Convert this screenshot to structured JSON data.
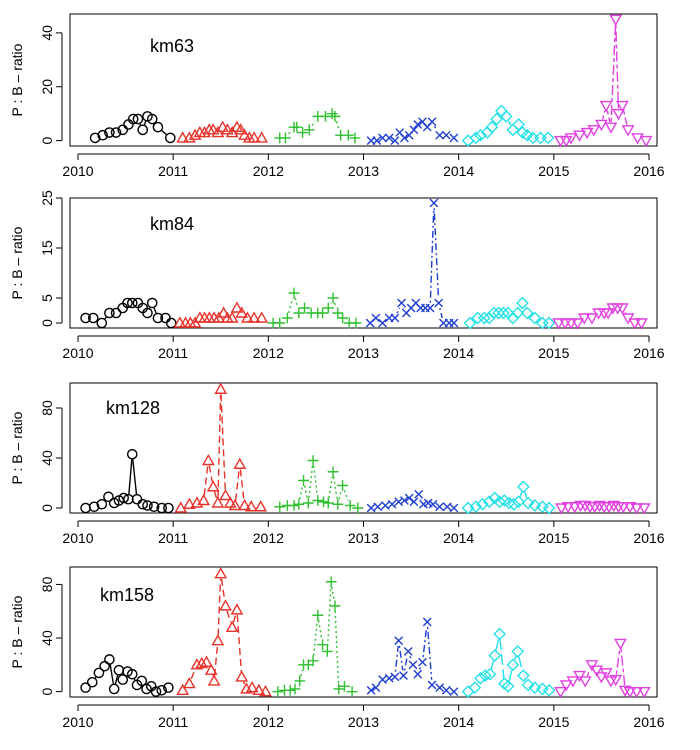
{
  "chart_data": {
    "type": "line",
    "ylabel": "P : B – ratio",
    "x_ticks": [
      "2010",
      "2011",
      "2012",
      "2013",
      "2014",
      "2015",
      "2016"
    ],
    "xlim": [
      2010,
      2016
    ],
    "year_styles": [
      {
        "year": 2010,
        "color": "#000000",
        "marker": "circle",
        "dash": "solid"
      },
      {
        "year": 2011,
        "color": "#e8322a",
        "marker": "triangle",
        "dash": "dashed"
      },
      {
        "year": 2012,
        "color": "#2fbf2f",
        "marker": "plus",
        "dash": "dotted"
      },
      {
        "year": 2013,
        "color": "#1f3fcf",
        "marker": "cross",
        "dash": "dotdash"
      },
      {
        "year": 2014,
        "color": "#26e0e8",
        "marker": "diamond",
        "dash": "longdash"
      },
      {
        "year": 2015,
        "color": "#e040e0",
        "marker": "triangle-down",
        "dash": "twodash"
      }
    ],
    "panels": [
      {
        "title": "km63",
        "ylim": [
          -2,
          47
        ],
        "y_ticks": [
          0,
          20,
          40
        ],
        "series": [
          {
            "year": 2010,
            "x": [
              2010.18,
              2010.26,
              2010.33,
              2010.4,
              2010.47,
              2010.53,
              2010.58,
              2010.63,
              2010.68,
              2010.73,
              2010.78,
              2010.84,
              2010.97
            ],
            "y": [
              1,
              2,
              3,
              3,
              4,
              6,
              8,
              8,
              4,
              9,
              8,
              5,
              1
            ]
          },
          {
            "year": 2011,
            "x": [
              2011.1,
              2011.17,
              2011.23,
              2011.28,
              2011.33,
              2011.38,
              2011.42,
              2011.47,
              2011.52,
              2011.57,
              2011.62,
              2011.67,
              2011.71,
              2011.75,
              2011.8,
              2011.85,
              2011.93
            ],
            "y": [
              1,
              1,
              2,
              3,
              3,
              4,
              4,
              3,
              5,
              4,
              3,
              5,
              4,
              2,
              1,
              1,
              1
            ]
          },
          {
            "year": 2012,
            "x": [
              2012.12,
              2012.18,
              2012.27,
              2012.3,
              2012.36,
              2012.43,
              2012.52,
              2012.6,
              2012.67,
              2012.7,
              2012.76,
              2012.84,
              2012.91
            ],
            "y": [
              1,
              1,
              5,
              5,
              3,
              4,
              9,
              9,
              10,
              9,
              2,
              2,
              1
            ]
          },
          {
            "year": 2013,
            "x": [
              2013.08,
              2013.14,
              2013.2,
              2013.27,
              2013.33,
              2013.38,
              2013.43,
              2013.48,
              2013.53,
              2013.57,
              2013.62,
              2013.67,
              2013.72,
              2013.8,
              2013.87,
              2013.95
            ],
            "y": [
              0,
              0,
              1,
              1,
              0,
              3,
              1,
              2,
              4,
              6,
              7,
              5,
              7,
              2,
              2,
              1
            ]
          },
          {
            "year": 2014,
            "x": [
              2014.1,
              2014.18,
              2014.23,
              2014.3,
              2014.35,
              2014.4,
              2014.45,
              2014.5,
              2014.57,
              2014.63,
              2014.67,
              2014.72,
              2014.78,
              2014.86,
              2014.94
            ],
            "y": [
              0,
              1,
              2,
              3,
              5,
              8,
              11,
              9,
              4,
              6,
              3,
              2,
              1,
              1,
              1
            ]
          },
          {
            "year": 2015,
            "x": [
              2015.07,
              2015.13,
              2015.18,
              2015.27,
              2015.35,
              2015.42,
              2015.5,
              2015.55,
              2015.6,
              2015.65,
              2015.68,
              2015.72,
              2015.78,
              2015.88,
              2015.97
            ],
            "y": [
              0,
              0,
              1,
              2,
              3,
              4,
              6,
              13,
              5,
              45,
              10,
              13,
              4,
              1,
              0
            ]
          }
        ]
      },
      {
        "title": "km84",
        "ylim": [
          -1,
          25
        ],
        "y_ticks": [
          0,
          5,
          15,
          25
        ],
        "series": [
          {
            "year": 2010,
            "x": [
              2010.08,
              2010.16,
              2010.25,
              2010.33,
              2010.4,
              2010.47,
              2010.52,
              2010.57,
              2010.63,
              2010.68,
              2010.73,
              2010.78,
              2010.84,
              2010.92,
              2010.98
            ],
            "y": [
              1,
              1,
              0,
              2,
              2,
              3,
              4,
              4,
              4,
              3,
              2,
              4,
              1,
              1,
              0
            ]
          },
          {
            "year": 2011,
            "x": [
              2011.07,
              2011.13,
              2011.18,
              2011.23,
              2011.28,
              2011.33,
              2011.38,
              2011.43,
              2011.48,
              2011.53,
              2011.57,
              2011.62,
              2011.67,
              2011.72,
              2011.78,
              2011.85,
              2011.93
            ],
            "y": [
              0,
              0,
              0,
              0,
              1,
              1,
              1,
              1,
              1,
              2,
              1,
              1,
              3,
              2,
              1,
              1,
              1
            ]
          },
          {
            "year": 2012,
            "x": [
              2012.05,
              2012.12,
              2012.2,
              2012.27,
              2012.32,
              2012.38,
              2012.45,
              2012.52,
              2012.57,
              2012.63,
              2012.68,
              2012.73,
              2012.78,
              2012.85,
              2012.92
            ],
            "y": [
              0,
              0,
              1,
              6,
              2,
              3,
              2,
              2,
              2,
              3,
              5,
              2,
              1,
              0,
              0
            ]
          },
          {
            "year": 2013,
            "x": [
              2013.07,
              2013.13,
              2013.2,
              2013.27,
              2013.33,
              2013.4,
              2013.45,
              2013.5,
              2013.55,
              2013.6,
              2013.65,
              2013.7,
              2013.74,
              2013.79,
              2013.84,
              2013.9,
              2013.95
            ],
            "y": [
              0,
              1,
              0,
              1,
              1,
              4,
              2,
              3,
              4,
              3,
              3,
              3,
              24,
              4,
              0,
              0,
              0
            ]
          },
          {
            "year": 2014,
            "x": [
              2014.12,
              2014.2,
              2014.27,
              2014.32,
              2014.37,
              2014.42,
              2014.47,
              2014.52,
              2014.57,
              2014.62,
              2014.67,
              2014.72,
              2014.8,
              2014.88,
              2014.95
            ],
            "y": [
              0,
              1,
              1,
              1,
              2,
              2,
              2,
              2,
              1,
              2,
              4,
              2,
              1,
              0,
              0
            ]
          },
          {
            "year": 2015,
            "x": [
              2015.05,
              2015.12,
              2015.18,
              2015.25,
              2015.32,
              2015.4,
              2015.47,
              2015.53,
              2015.57,
              2015.62,
              2015.67,
              2015.72,
              2015.78,
              2015.85,
              2015.92
            ],
            "y": [
              0,
              0,
              0,
              0,
              1,
              1,
              2,
              2,
              2,
              3,
              3,
              3,
              1,
              0,
              0
            ]
          }
        ]
      },
      {
        "title": "km128",
        "ylim": [
          -4,
          100
        ],
        "y_ticks": [
          0,
          40,
          80
        ],
        "series": [
          {
            "year": 2010,
            "x": [
              2010.08,
              2010.17,
              2010.25,
              2010.32,
              2010.38,
              2010.43,
              2010.48,
              2010.53,
              2010.57,
              2010.62,
              2010.68,
              2010.73,
              2010.8,
              2010.88,
              2010.95
            ],
            "y": [
              0,
              1,
              3,
              9,
              4,
              6,
              8,
              7,
              43,
              7,
              3,
              2,
              1,
              0,
              0
            ]
          },
          {
            "year": 2011,
            "x": [
              2011.08,
              2011.17,
              2011.25,
              2011.32,
              2011.37,
              2011.42,
              2011.47,
              2011.5,
              2011.55,
              2011.6,
              2011.65,
              2011.7,
              2011.75,
              2011.82,
              2011.92
            ],
            "y": [
              0,
              3,
              4,
              6,
              38,
              17,
              4,
              95,
              10,
              4,
              2,
              35,
              2,
              1,
              1
            ]
          },
          {
            "year": 2012,
            "x": [
              2012.12,
              2012.2,
              2012.27,
              2012.32,
              2012.37,
              2012.42,
              2012.47,
              2012.52,
              2012.58,
              2012.63,
              2012.68,
              2012.73,
              2012.78,
              2012.86,
              2012.94
            ],
            "y": [
              1,
              2,
              2,
              3,
              22,
              4,
              38,
              6,
              5,
              4,
              29,
              3,
              18,
              2,
              0
            ]
          },
          {
            "year": 2013,
            "x": [
              2013.08,
              2013.15,
              2013.23,
              2013.3,
              2013.37,
              2013.43,
              2013.48,
              2013.53,
              2013.58,
              2013.63,
              2013.68,
              2013.73,
              2013.8,
              2013.88,
              2013.95
            ],
            "y": [
              0,
              1,
              2,
              3,
              5,
              6,
              8,
              5,
              11,
              3,
              4,
              3,
              1,
              1,
              0
            ]
          },
          {
            "year": 2014,
            "x": [
              2014.1,
              2014.18,
              2014.25,
              2014.32,
              2014.38,
              2014.43,
              2014.48,
              2014.53,
              2014.58,
              2014.63,
              2014.68,
              2014.73,
              2014.8,
              2014.88,
              2014.95
            ],
            "y": [
              0,
              1,
              3,
              5,
              8,
              5,
              6,
              4,
              3,
              5,
              17,
              4,
              2,
              1,
              0
            ]
          },
          {
            "year": 2015,
            "x": [
              2015.08,
              2015.15,
              2015.22,
              2015.28,
              2015.33,
              2015.38,
              2015.43,
              2015.48,
              2015.53,
              2015.58,
              2015.63,
              2015.68,
              2015.73,
              2015.8,
              2015.87,
              2015.95
            ],
            "y": [
              0,
              1,
              1,
              2,
              2,
              1,
              1,
              2,
              1,
              1,
              2,
              1,
              1,
              1,
              0,
              0
            ]
          }
        ]
      },
      {
        "title": "km158",
        "ylim": [
          -4,
          93
        ],
        "y_ticks": [
          0,
          40,
          80
        ],
        "series": [
          {
            "year": 2010,
            "x": [
              2010.08,
              2010.15,
              2010.22,
              2010.28,
              2010.33,
              2010.38,
              2010.43,
              2010.47,
              2010.52,
              2010.57,
              2010.62,
              2010.67,
              2010.72,
              2010.77,
              2010.82,
              2010.88,
              2010.95
            ],
            "y": [
              3,
              7,
              14,
              19,
              24,
              2,
              16,
              9,
              15,
              13,
              5,
              8,
              2,
              4,
              0,
              1,
              3
            ]
          },
          {
            "year": 2011,
            "x": [
              2011.1,
              2011.17,
              2011.25,
              2011.3,
              2011.35,
              2011.4,
              2011.43,
              2011.47,
              2011.5,
              2011.55,
              2011.62,
              2011.67,
              2011.72,
              2011.77,
              2011.83,
              2011.9,
              2011.97
            ],
            "y": [
              1,
              6,
              20,
              21,
              22,
              16,
              8,
              38,
              88,
              64,
              48,
              61,
              11,
              2,
              3,
              1,
              0
            ]
          },
          {
            "year": 2012,
            "x": [
              2012.1,
              2012.17,
              2012.23,
              2012.28,
              2012.33,
              2012.37,
              2012.42,
              2012.47,
              2012.52,
              2012.57,
              2012.62,
              2012.66,
              2012.7,
              2012.74,
              2012.8,
              2012.88
            ],
            "y": [
              0,
              1,
              1,
              2,
              8,
              20,
              20,
              23,
              57,
              35,
              30,
              82,
              64,
              2,
              4,
              0
            ]
          },
          {
            "year": 2013,
            "x": [
              2013.08,
              2013.13,
              2013.2,
              2013.27,
              2013.33,
              2013.37,
              2013.42,
              2013.47,
              2013.52,
              2013.57,
              2013.62,
              2013.67,
              2013.72,
              2013.8,
              2013.87,
              2013.95
            ],
            "y": [
              1,
              3,
              9,
              10,
              11,
              38,
              12,
              30,
              20,
              13,
              22,
              52,
              5,
              3,
              1,
              0
            ]
          },
          {
            "year": 2014,
            "x": [
              2014.1,
              2014.17,
              2014.23,
              2014.28,
              2014.33,
              2014.38,
              2014.43,
              2014.48,
              2014.52,
              2014.57,
              2014.62,
              2014.68,
              2014.73,
              2014.8,
              2014.88,
              2014.95
            ],
            "y": [
              0,
              3,
              10,
              12,
              13,
              27,
              43,
              6,
              4,
              20,
              30,
              12,
              5,
              3,
              2,
              1
            ]
          },
          {
            "year": 2015,
            "x": [
              2015.07,
              2015.13,
              2015.2,
              2015.27,
              2015.33,
              2015.4,
              2015.45,
              2015.5,
              2015.55,
              2015.6,
              2015.65,
              2015.7,
              2015.75,
              2015.8,
              2015.87,
              2015.95
            ],
            "y": [
              0,
              5,
              8,
              12,
              8,
              20,
              16,
              11,
              14,
              8,
              9,
              36,
              1,
              0,
              0,
              0
            ]
          }
        ]
      }
    ]
  }
}
